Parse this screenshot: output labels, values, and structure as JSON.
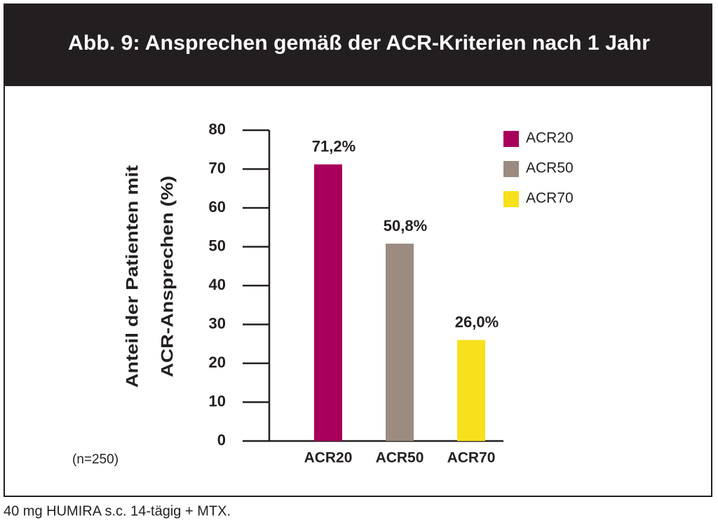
{
  "chart_data": {
    "type": "bar",
    "title": "Abb. 9:  Ansprechen gemäß der ACR-Kriterien nach 1 Jahr",
    "ylabel": [
      "Anteil der Patienten mit",
      "ACR-Ansprechen (%)"
    ],
    "categories": [
      "ACR20",
      "ACR50",
      "ACR70"
    ],
    "values": [
      71.2,
      50.8,
      26.0
    ],
    "value_labels": [
      "71,2%",
      "50,8%",
      "26,0%"
    ],
    "colors": [
      "#a8005a",
      "#9c8b80",
      "#f7e11c"
    ],
    "ylim": [
      0,
      80
    ],
    "yticks": [
      0,
      10,
      20,
      30,
      40,
      50,
      60,
      70,
      80
    ],
    "legend": "top-right",
    "annotation": "(n=250)",
    "footnote": "40 mg HUMIRA s.c. 14-tägig + MTX."
  }
}
